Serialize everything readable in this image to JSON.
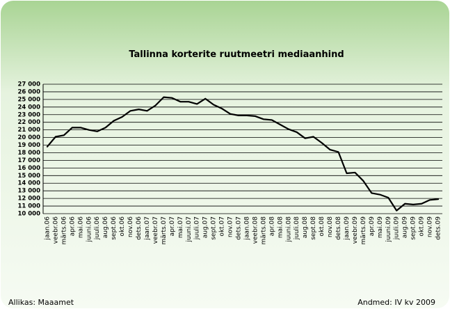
{
  "chart_data": {
    "type": "line",
    "title": "Tallinna korterite ruutmeetri mediaanhind",
    "categories": [
      "jaan.06",
      "veebr.06",
      "märts.06",
      "apr.06",
      "mai.06",
      "juuni.06",
      "juuli.06",
      "aug.06",
      "sept.06",
      "okt.06",
      "nov.06",
      "dets.06",
      "jaan.07",
      "veebr.07",
      "märts.07",
      "apr.07",
      "mai.07",
      "juuni.07",
      "juuli.07",
      "aug.07",
      "sept.07",
      "okt.07",
      "nov.07",
      "dets.07",
      "jaan.08",
      "veebr.08",
      "märts.08",
      "apr.08",
      "mai.08",
      "juuni.08",
      "juuli.08",
      "aug.08",
      "sept.08",
      "okt.08",
      "nov.08",
      "dets.08",
      "jaan.09",
      "veebr.09",
      "märts.09",
      "apr.09",
      "mai.09",
      "juuni.09",
      "juuli.09",
      "aug.09",
      "sept.09",
      "okt.09",
      "nov.09",
      "dets.09"
    ],
    "series": [
      {
        "name": "mediaanhind",
        "color": "#000000",
        "values": [
          18800,
          20100,
          20300,
          21300,
          21300,
          21000,
          20800,
          21300,
          22200,
          22700,
          23500,
          23700,
          23500,
          24200,
          25300,
          25200,
          24700,
          24700,
          24400,
          25100,
          24300,
          23800,
          23100,
          22900,
          22900,
          22800,
          22400,
          22300,
          21700,
          21100,
          20700,
          19900,
          20100,
          19300,
          18400,
          18100,
          15300,
          15400,
          14300,
          12700,
          12500,
          12100,
          10400,
          11300,
          11200,
          11300,
          11800,
          11900
        ]
      }
    ],
    "ylim": [
      10000,
      27000
    ],
    "yticks": [
      {
        "value": 10000,
        "label": "10 000"
      },
      {
        "value": 11000,
        "label": "11 000"
      },
      {
        "value": 12000,
        "label": "12 000"
      },
      {
        "value": 13000,
        "label": "13 000"
      },
      {
        "value": 14000,
        "label": "14 000"
      },
      {
        "value": 15000,
        "label": "15 000"
      },
      {
        "value": 16000,
        "label": "16 000"
      },
      {
        "value": 17000,
        "label": "17 000"
      },
      {
        "value": 18000,
        "label": "18 000"
      },
      {
        "value": 19000,
        "label": "19 000"
      },
      {
        "value": 20000,
        "label": "20 000"
      },
      {
        "value": 21000,
        "label": "21 000"
      },
      {
        "value": 22000,
        "label": "22 000"
      },
      {
        "value": 23000,
        "label": "23 000"
      },
      {
        "value": 24000,
        "label": "24 000"
      },
      {
        "value": 25000,
        "label": "25 000"
      },
      {
        "value": 26000,
        "label": "26 000"
      },
      {
        "value": 27000,
        "label": "27 000"
      }
    ],
    "grid": true,
    "source": "Allikas: Maaamet",
    "note": "Andmed: IV kv 2009"
  }
}
